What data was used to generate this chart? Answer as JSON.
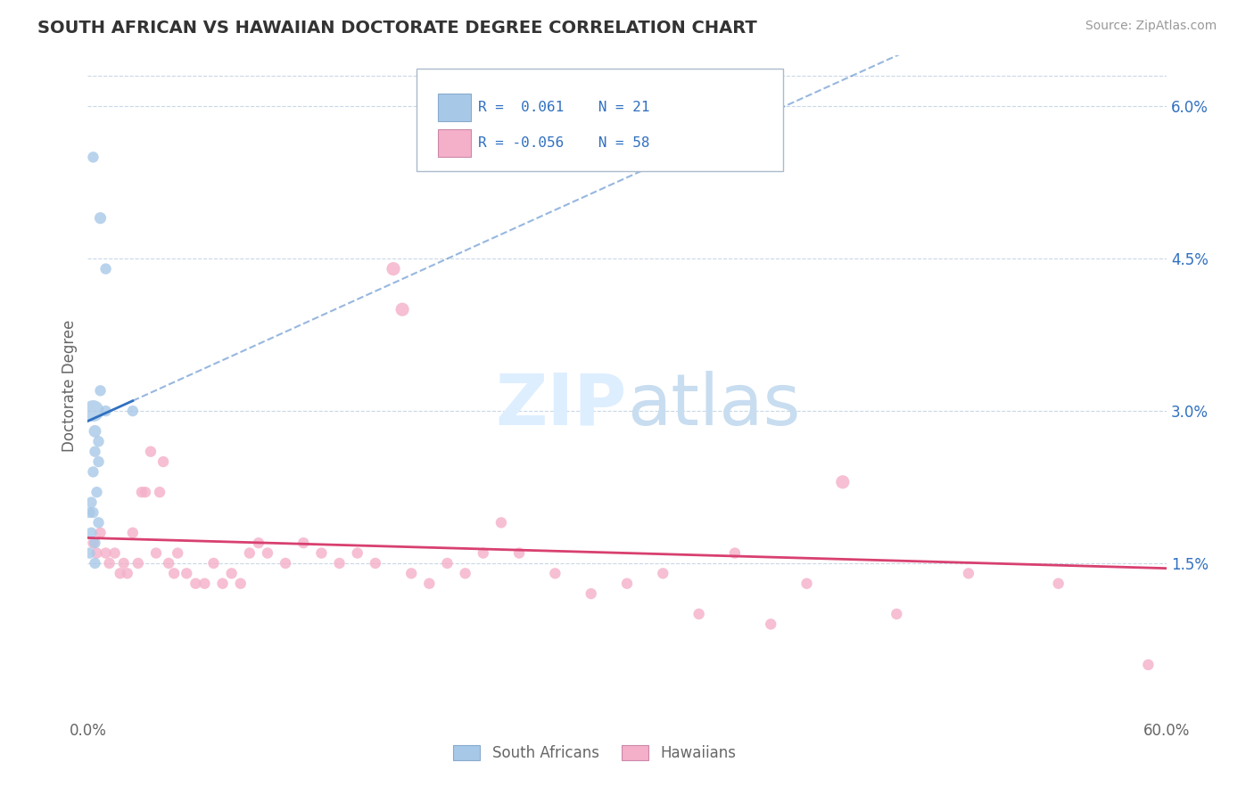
{
  "title": "SOUTH AFRICAN VS HAWAIIAN DOCTORATE DEGREE CORRELATION CHART",
  "source": "Source: ZipAtlas.com",
  "ylabel": "Doctorate Degree",
  "xlabel": "",
  "xlim": [
    0.0,
    0.6
  ],
  "ylim": [
    0.0,
    0.065
  ],
  "yticks": [
    0.015,
    0.03,
    0.045,
    0.06
  ],
  "ytick_labels": [
    "1.5%",
    "3.0%",
    "4.5%",
    "6.0%"
  ],
  "xticks": [
    0.0,
    0.1,
    0.2,
    0.3,
    0.4,
    0.5,
    0.6
  ],
  "xtick_labels": [
    "0.0%",
    "",
    "",
    "",
    "",
    "",
    "60.0%"
  ],
  "legend_r1": "R =  0.061",
  "legend_n1": "N = 21",
  "legend_r2": "R = -0.056",
  "legend_n2": "N = 58",
  "sa_color": "#a8c8e8",
  "ha_color": "#f4b0c8",
  "sa_line_color": "#3070c0",
  "ha_line_color": "#d84070",
  "watermark_color": "#ddeeff",
  "background_color": "#ffffff",
  "grid_color": "#c8d8e8",
  "sa_points": [
    [
      0.003,
      0.055
    ],
    [
      0.007,
      0.049
    ],
    [
      0.01,
      0.044
    ],
    [
      0.007,
      0.032
    ],
    [
      0.003,
      0.03
    ],
    [
      0.004,
      0.028
    ],
    [
      0.006,
      0.027
    ],
    [
      0.004,
      0.026
    ],
    [
      0.006,
      0.025
    ],
    [
      0.003,
      0.024
    ],
    [
      0.005,
      0.022
    ],
    [
      0.002,
      0.021
    ],
    [
      0.001,
      0.02
    ],
    [
      0.003,
      0.02
    ],
    [
      0.006,
      0.019
    ],
    [
      0.002,
      0.018
    ],
    [
      0.004,
      0.017
    ],
    [
      0.001,
      0.016
    ],
    [
      0.004,
      0.015
    ],
    [
      0.01,
      0.03
    ],
    [
      0.025,
      0.03
    ]
  ],
  "sa_sizes": [
    80,
    90,
    80,
    80,
    300,
    100,
    80,
    80,
    80,
    80,
    80,
    80,
    80,
    80,
    80,
    80,
    80,
    80,
    80,
    80,
    80
  ],
  "ha_points": [
    [
      0.003,
      0.017
    ],
    [
      0.005,
      0.016
    ],
    [
      0.007,
      0.018
    ],
    [
      0.01,
      0.016
    ],
    [
      0.012,
      0.015
    ],
    [
      0.015,
      0.016
    ],
    [
      0.018,
      0.014
    ],
    [
      0.02,
      0.015
    ],
    [
      0.022,
      0.014
    ],
    [
      0.025,
      0.018
    ],
    [
      0.028,
      0.015
    ],
    [
      0.03,
      0.022
    ],
    [
      0.032,
      0.022
    ],
    [
      0.035,
      0.026
    ],
    [
      0.038,
      0.016
    ],
    [
      0.04,
      0.022
    ],
    [
      0.042,
      0.025
    ],
    [
      0.045,
      0.015
    ],
    [
      0.048,
      0.014
    ],
    [
      0.05,
      0.016
    ],
    [
      0.055,
      0.014
    ],
    [
      0.06,
      0.013
    ],
    [
      0.065,
      0.013
    ],
    [
      0.07,
      0.015
    ],
    [
      0.075,
      0.013
    ],
    [
      0.08,
      0.014
    ],
    [
      0.085,
      0.013
    ],
    [
      0.09,
      0.016
    ],
    [
      0.095,
      0.017
    ],
    [
      0.1,
      0.016
    ],
    [
      0.11,
      0.015
    ],
    [
      0.12,
      0.017
    ],
    [
      0.13,
      0.016
    ],
    [
      0.14,
      0.015
    ],
    [
      0.15,
      0.016
    ],
    [
      0.16,
      0.015
    ],
    [
      0.17,
      0.044
    ],
    [
      0.175,
      0.04
    ],
    [
      0.18,
      0.014
    ],
    [
      0.19,
      0.013
    ],
    [
      0.2,
      0.015
    ],
    [
      0.21,
      0.014
    ],
    [
      0.22,
      0.016
    ],
    [
      0.23,
      0.019
    ],
    [
      0.24,
      0.016
    ],
    [
      0.26,
      0.014
    ],
    [
      0.28,
      0.012
    ],
    [
      0.3,
      0.013
    ],
    [
      0.32,
      0.014
    ],
    [
      0.34,
      0.01
    ],
    [
      0.36,
      0.016
    ],
    [
      0.38,
      0.009
    ],
    [
      0.4,
      0.013
    ],
    [
      0.42,
      0.023
    ],
    [
      0.45,
      0.01
    ],
    [
      0.49,
      0.014
    ],
    [
      0.54,
      0.013
    ],
    [
      0.59,
      0.005
    ]
  ],
  "ha_sizes": [
    80,
    80,
    80,
    80,
    80,
    80,
    80,
    80,
    80,
    80,
    80,
    80,
    80,
    80,
    80,
    80,
    80,
    80,
    80,
    80,
    80,
    80,
    80,
    80,
    80,
    80,
    80,
    80,
    80,
    80,
    80,
    80,
    80,
    80,
    80,
    80,
    120,
    120,
    80,
    80,
    80,
    80,
    80,
    80,
    80,
    80,
    80,
    80,
    80,
    80,
    80,
    80,
    80,
    120,
    80,
    80,
    80,
    80
  ]
}
